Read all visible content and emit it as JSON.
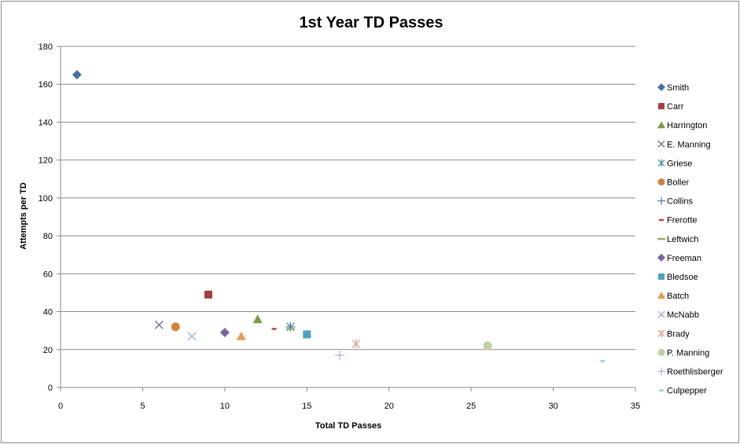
{
  "chart_data": {
    "type": "scatter",
    "title": "1st Year TD Passes",
    "xlabel": "Total TD Passes",
    "ylabel": "Attempts per TD",
    "xlim": [
      0,
      35
    ],
    "ylim": [
      0,
      180
    ],
    "xticks": [
      0,
      5,
      10,
      15,
      20,
      25,
      30,
      35
    ],
    "yticks": [
      0,
      20,
      40,
      60,
      80,
      100,
      120,
      140,
      160,
      180
    ],
    "grid": "horizontal",
    "legend_position": "right",
    "series": [
      {
        "name": "Smith",
        "x": 1,
        "y": 165,
        "marker": "diamond",
        "color": "#4A6FA5"
      },
      {
        "name": "Carr",
        "x": 9,
        "y": 49,
        "marker": "square",
        "color": "#A5403F"
      },
      {
        "name": "Harrington",
        "x": 12,
        "y": 36,
        "marker": "triangle",
        "color": "#7A9A45"
      },
      {
        "name": "E. Manning",
        "x": 6,
        "y": 33,
        "marker": "x",
        "color": "#6B5B95"
      },
      {
        "name": "Griese",
        "x": 14,
        "y": 32,
        "marker": "star",
        "color": "#3C8FA5"
      },
      {
        "name": "Boller",
        "x": 7,
        "y": 32,
        "marker": "circle",
        "color": "#D1823A"
      },
      {
        "name": "Collins",
        "x": 14,
        "y": 32,
        "marker": "plus",
        "color": "#4A7ABF"
      },
      {
        "name": "Frerotte",
        "x": 13,
        "y": 31,
        "marker": "dash",
        "color": "#BF3F3F"
      },
      {
        "name": "Leftwich",
        "x": 14,
        "y": 31,
        "marker": "longdash",
        "color": "#92B05A"
      },
      {
        "name": "Freeman",
        "x": 10,
        "y": 29,
        "marker": "diamond",
        "color": "#7B62A3"
      },
      {
        "name": "Bledsoe",
        "x": 15,
        "y": 28,
        "marker": "square",
        "color": "#4BA3BF"
      },
      {
        "name": "Batch",
        "x": 11,
        "y": 27,
        "marker": "triangle",
        "color": "#E89A50"
      },
      {
        "name": "McNabb",
        "x": 8,
        "y": 27,
        "marker": "x",
        "color": "#93A9D4"
      },
      {
        "name": "Brady",
        "x": 18,
        "y": 23,
        "marker": "star",
        "color": "#D4A090"
      },
      {
        "name": "P. Manning",
        "x": 26,
        "y": 22,
        "marker": "circle",
        "color": "#BFD0A4"
      },
      {
        "name": "Roethlisberger",
        "x": 17,
        "y": 17,
        "marker": "plus",
        "color": "#B8A8D4"
      },
      {
        "name": "Culpepper",
        "x": 33,
        "y": 14,
        "marker": "dash",
        "color": "#8FCFE0"
      }
    ]
  }
}
